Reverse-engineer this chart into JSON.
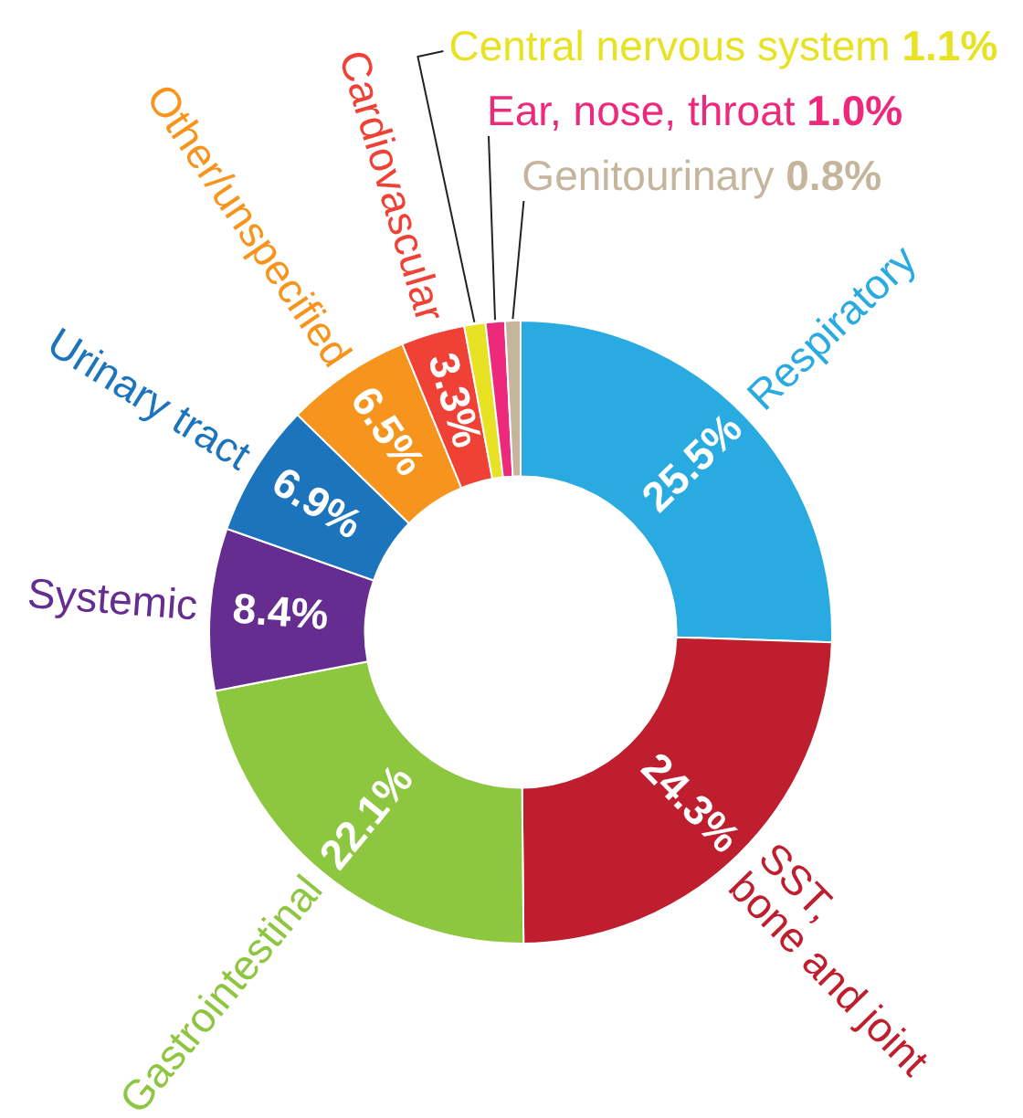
{
  "chart_data": {
    "type": "donut",
    "categories": [
      "Respiratory",
      "SST,\nbone and joint",
      "Gastrointestinal",
      "Systemic",
      "Urinary tract",
      "Other/unspecified",
      "Cardiovascular",
      "Central nervous system",
      "Ear, nose, throat",
      "Genitourinary"
    ],
    "values": [
      25.5,
      24.3,
      22.1,
      8.4,
      6.9,
      6.5,
      3.3,
      1.1,
      1.0,
      0.8
    ],
    "value_labels": [
      "25.5%",
      "24.3%",
      "22.1%",
      "8.4%",
      "6.9%",
      "6.5%",
      "3.3%",
      "1.1%",
      "1.0%",
      "0.8%"
    ],
    "colors": [
      "#29abe2",
      "#be1e2d",
      "#8dc63f",
      "#662d91",
      "#1c75bc",
      "#f7941d",
      "#ef4136",
      "#e8e224",
      "#ec297b",
      "#c4b59c"
    ]
  }
}
